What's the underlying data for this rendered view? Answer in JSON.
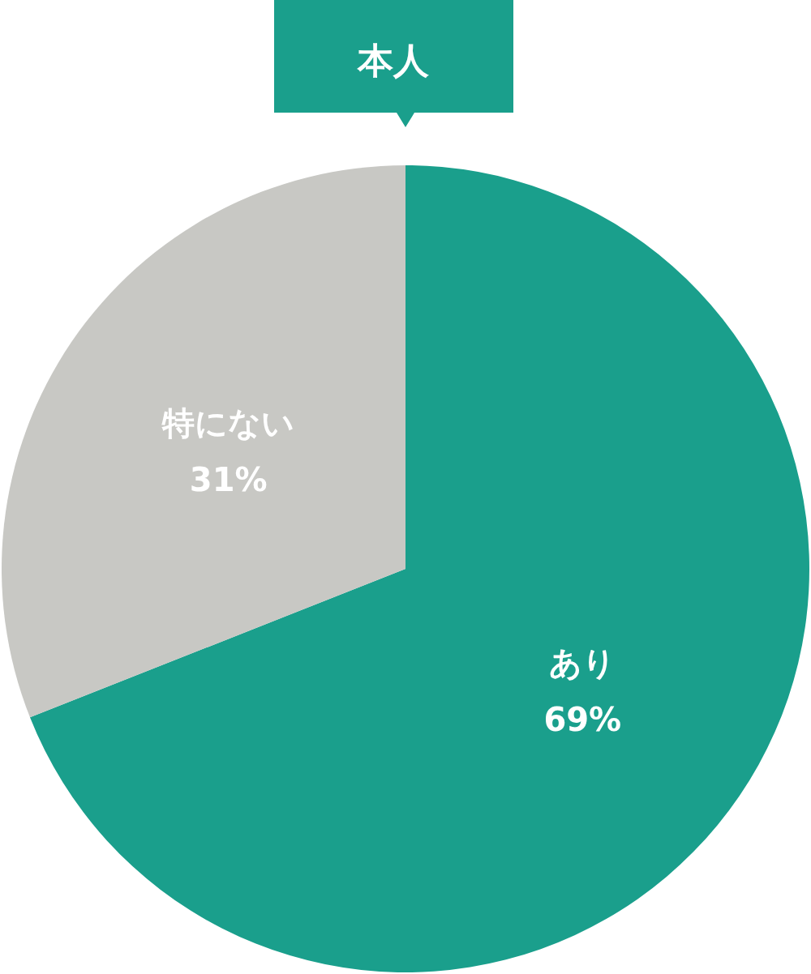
{
  "chart_data": {
    "type": "pie",
    "title": "本人",
    "categories": [
      "あり",
      "特にない"
    ],
    "values": [
      69,
      31
    ],
    "colors": [
      "#1a9f8c",
      "#c8c8c4"
    ],
    "value_labels": [
      "69%",
      "31%"
    ]
  }
}
